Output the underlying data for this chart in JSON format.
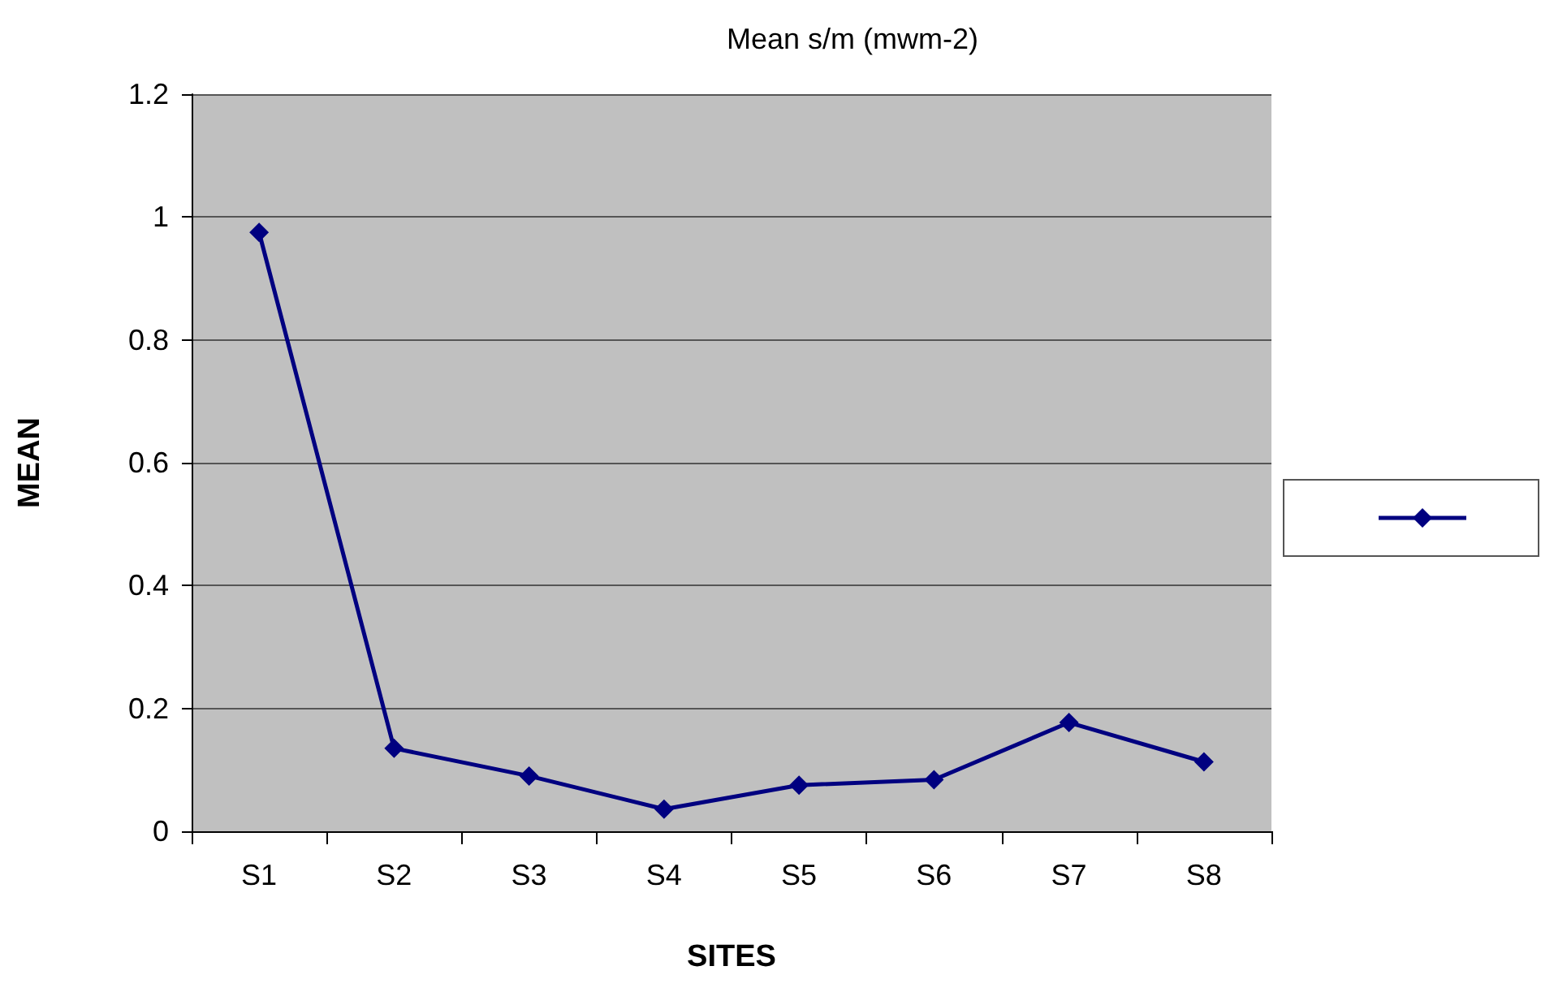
{
  "chart_data": {
    "type": "line",
    "title": "Mean s/m (mwm-2)",
    "xlabel": "SITES",
    "ylabel": "MEAN",
    "categories": [
      "S1",
      "S2",
      "S3",
      "S4",
      "S5",
      "S6",
      "S7",
      "S8"
    ],
    "series": [
      {
        "color": "#000080",
        "values": [
          0.975,
          0.135,
          0.09,
          0.036,
          0.075,
          0.084,
          0.177,
          0.113
        ]
      }
    ],
    "ylim": [
      0,
      1.2
    ],
    "yticks": [
      0,
      0.2,
      0.4,
      0.6,
      0.8,
      1,
      1.2
    ],
    "grid": "y",
    "marker": "diamond"
  }
}
